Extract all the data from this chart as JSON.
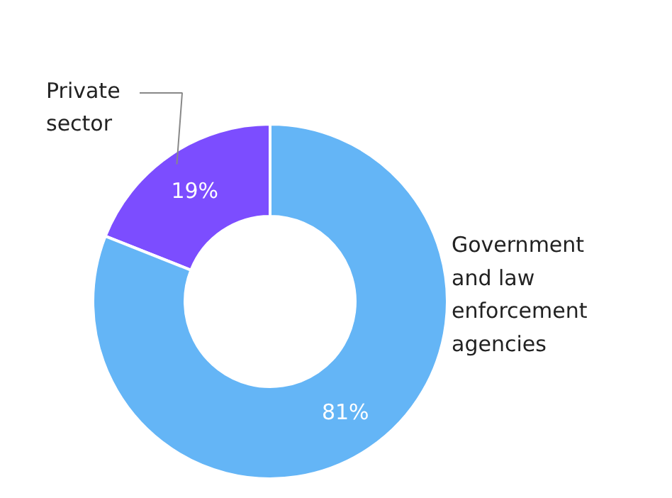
{
  "chart_data": {
    "type": "donut",
    "categories": [
      "Private sector",
      "Government and law enforcement agencies"
    ],
    "values": [
      19,
      81
    ],
    "value_labels": [
      "19%",
      "81%"
    ],
    "colors": [
      "#7c4dff",
      "#64b5f6"
    ]
  }
}
